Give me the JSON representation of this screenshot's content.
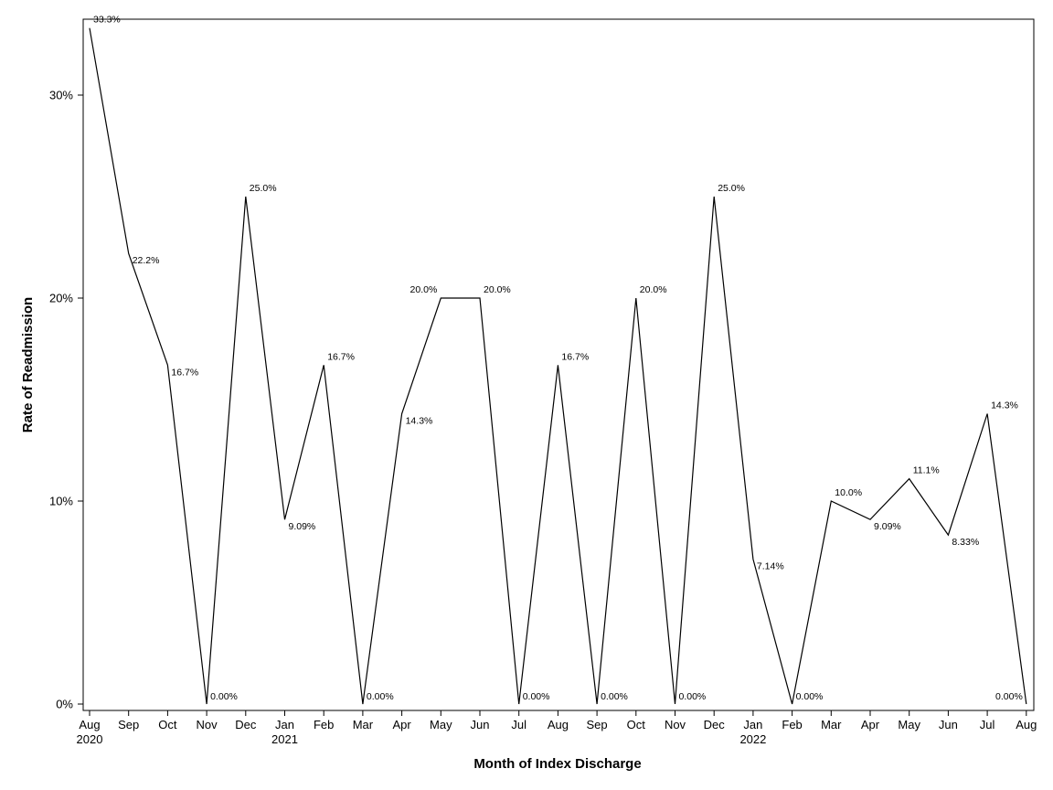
{
  "chart_data": {
    "type": "line",
    "xlabel": "Month of Index Discharge",
    "ylabel": "Rate of Readmission",
    "ylim": [
      0,
      0.35
    ],
    "yticks": [
      {
        "value": 0,
        "label": "0%"
      },
      {
        "value": 0.1,
        "label": "10%"
      },
      {
        "value": 0.2,
        "label": "20%"
      },
      {
        "value": 0.3,
        "label": "30%"
      }
    ],
    "x": [
      "2020-08",
      "2020-09",
      "2020-10",
      "2020-11",
      "2020-12",
      "2021-01",
      "2021-02",
      "2021-03",
      "2021-04",
      "2021-05",
      "2021-06",
      "2021-07",
      "2021-08",
      "2021-09",
      "2021-10",
      "2021-11",
      "2021-12",
      "2022-01",
      "2022-02",
      "2022-03",
      "2022-04",
      "2022-05",
      "2022-06",
      "2022-07",
      "2022-08"
    ],
    "x_tick_labels": [
      "Aug",
      "Sep",
      "Oct",
      "Nov",
      "Dec",
      "Jan",
      "Feb",
      "Mar",
      "Apr",
      "May",
      "Jun",
      "Jul",
      "Aug",
      "Sep",
      "Oct",
      "Nov",
      "Dec",
      "Jan",
      "Feb",
      "Mar",
      "Apr",
      "May",
      "Jun",
      "Jul",
      "Aug"
    ],
    "x_tick_sublabels": [
      "2020",
      "",
      "",
      "",
      "",
      "2021",
      "",
      "",
      "",
      "",
      "",
      "",
      "",
      "",
      "",
      "",
      "",
      "2022",
      "",
      "",
      "",
      "",
      "",
      "",
      ""
    ],
    "values": [
      0.333,
      0.222,
      0.167,
      0.0,
      0.25,
      0.0909,
      0.167,
      0.0,
      0.143,
      0.2,
      0.2,
      0.0,
      0.167,
      0.0,
      0.2,
      0.0,
      0.25,
      0.0714,
      0.0,
      0.1,
      0.0909,
      0.111,
      0.0833,
      0.143,
      0.0
    ],
    "data_labels": [
      "33.3%",
      "22.2%",
      "16.7%",
      "0.00%",
      "25.0%",
      "9.09%",
      "16.7%",
      "0.00%",
      "14.3%",
      "20.0%",
      "20.0%",
      "0.00%",
      "16.7%",
      "0.00%",
      "20.0%",
      "0.00%",
      "25.0%",
      "7.14%",
      "0.00%",
      "10.0%",
      "9.09%",
      "11.1%",
      "8.33%",
      "14.3%",
      "0.00%"
    ],
    "grid": false,
    "legend": "none"
  }
}
